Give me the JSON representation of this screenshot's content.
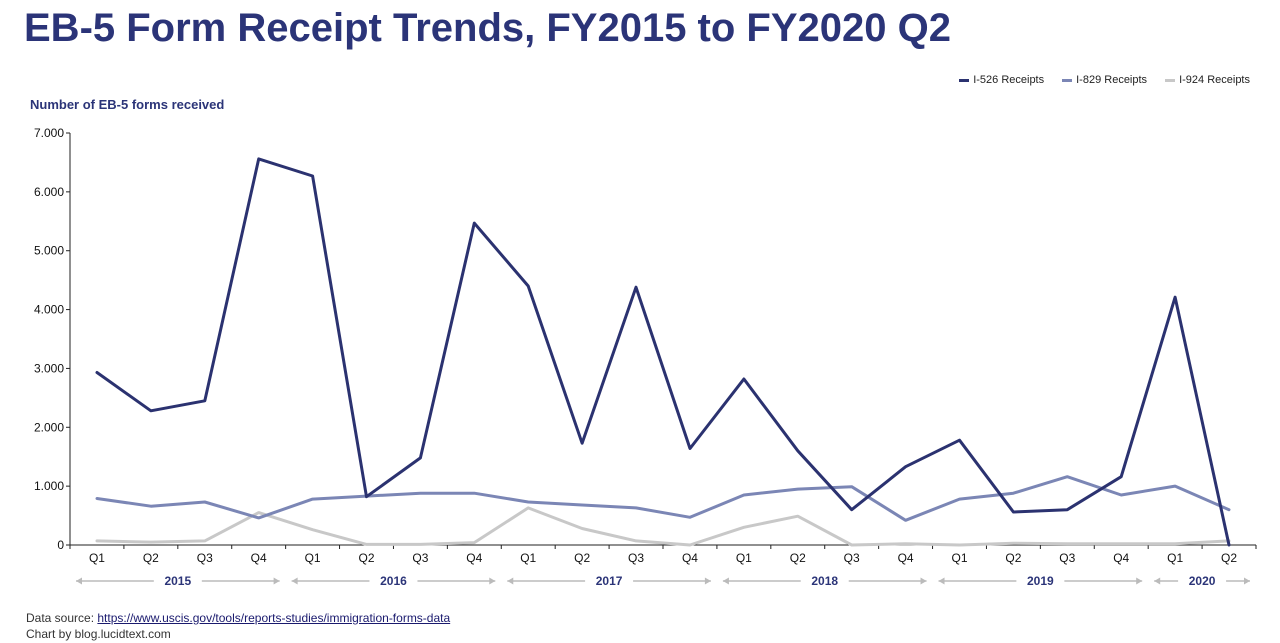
{
  "title": "EB-5 Form Receipt Trends, FY2015 to FY2020 Q2",
  "source_prefix": "Data source: ",
  "source_url": "https://www.uscis.gov/tools/reports-studies/immigration-forms-data",
  "credit": "Chart by blog.lucidtext.com",
  "chart_data": {
    "type": "line",
    "ylabel": "Number of EB-5 forms received",
    "ylim": [
      0,
      7000
    ],
    "yticks": [
      "0",
      "1.000",
      "2.000",
      "3.000",
      "4.000",
      "5.000",
      "6.000",
      "7.000"
    ],
    "categories": [
      "Q1",
      "Q2",
      "Q3",
      "Q4",
      "Q1",
      "Q2",
      "Q3",
      "Q4",
      "Q1",
      "Q2",
      "Q3",
      "Q4",
      "Q1",
      "Q2",
      "Q3",
      "Q4",
      "Q1",
      "Q2",
      "Q3",
      "Q4",
      "Q1",
      "Q2"
    ],
    "years": [
      {
        "label": "2015",
        "quarters": 4
      },
      {
        "label": "2016",
        "quarters": 4
      },
      {
        "label": "2017",
        "quarters": 4
      },
      {
        "label": "2018",
        "quarters": 4
      },
      {
        "label": "2019",
        "quarters": 4
      },
      {
        "label": "2020",
        "quarters": 2
      }
    ],
    "legend_position": "top-right",
    "grid": false,
    "series": [
      {
        "name": "I-526 Receipts",
        "color": "#2b3270",
        "values": [
          2930,
          2280,
          2450,
          6560,
          6270,
          820,
          1480,
          5470,
          4400,
          1730,
          4380,
          1640,
          2820,
          1600,
          600,
          1330,
          1780,
          560,
          600,
          1160,
          4210,
          0
        ]
      },
      {
        "name": "I-829 Receipts",
        "color": "#7b86b5",
        "values": [
          790,
          660,
          730,
          460,
          780,
          830,
          880,
          880,
          730,
          680,
          630,
          470,
          850,
          950,
          990,
          420,
          780,
          880,
          1160,
          850,
          1000,
          600
        ]
      },
      {
        "name": "I-924 Receipts",
        "color": "#c8c8c8",
        "values": [
          70,
          50,
          70,
          550,
          260,
          10,
          10,
          40,
          630,
          280,
          70,
          0,
          300,
          490,
          0,
          20,
          0,
          30,
          20,
          20,
          20,
          70
        ]
      }
    ]
  }
}
